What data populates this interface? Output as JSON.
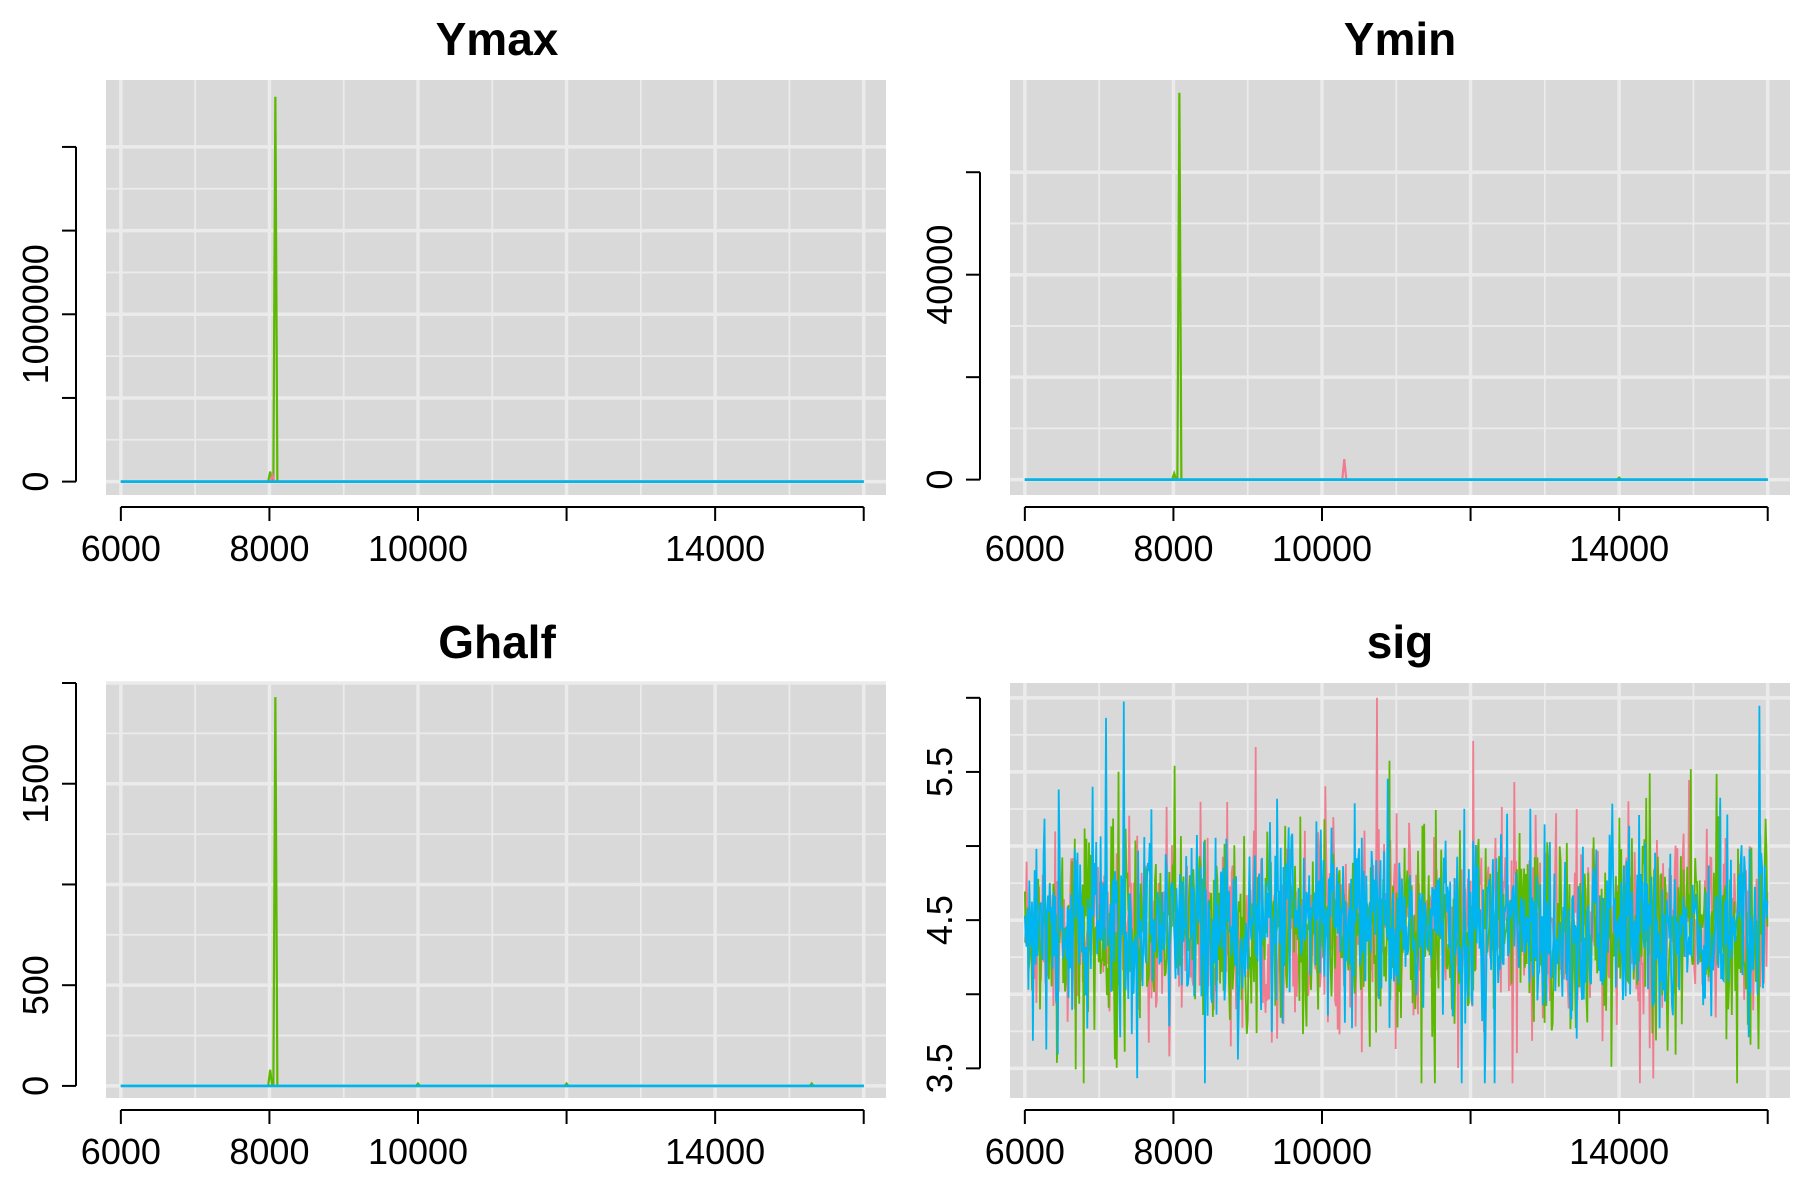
{
  "colors": {
    "panel_background": "#d9d9d9",
    "grid": "#ebebeb",
    "series_red": "#f07c8f",
    "series_green": "#5cb800",
    "series_blue": "#00b4f0"
  },
  "chart_data": [
    {
      "type": "line",
      "title": "Ymax",
      "xlabel": "",
      "ylabel": "",
      "xlim": [
        5800,
        16300
      ],
      "ylim": [
        -80000,
        2400000
      ],
      "x_ticks": [
        6000,
        8000,
        10000,
        12000,
        14000,
        16000
      ],
      "x_tick_labels": [
        "6000",
        "8000",
        "10000",
        "",
        "14000",
        ""
      ],
      "y_ticks": [
        0,
        500000,
        1000000,
        1500000,
        2000000
      ],
      "y_tick_labels": [
        "0",
        "",
        "1000000",
        "",
        ""
      ],
      "grid": true,
      "legend": "none",
      "baseline": 0,
      "spikes": [
        {
          "series": "green",
          "x": 8080,
          "y": 2300000
        },
        {
          "series": "green",
          "x": 8010,
          "y": 60000
        },
        {
          "series": "red",
          "x": 8040,
          "y": 40000
        }
      ],
      "series": [
        {
          "color_key": "series_red"
        },
        {
          "color_key": "series_green"
        },
        {
          "color_key": "series_blue"
        }
      ]
    },
    {
      "type": "line",
      "title": "Ymin",
      "xlabel": "",
      "ylabel": "",
      "xlim": [
        5800,
        16300
      ],
      "ylim": [
        -3000,
        78000
      ],
      "x_ticks": [
        6000,
        8000,
        10000,
        12000,
        14000,
        16000
      ],
      "x_tick_labels": [
        "6000",
        "8000",
        "10000",
        "",
        "14000",
        ""
      ],
      "y_ticks": [
        0,
        20000,
        40000,
        60000
      ],
      "y_tick_labels": [
        "0",
        "",
        "40000",
        ""
      ],
      "grid": true,
      "legend": "none",
      "baseline": 0,
      "spikes": [
        {
          "series": "green",
          "x": 8080,
          "y": 75500
        },
        {
          "series": "green",
          "x": 8010,
          "y": 1200
        },
        {
          "series": "red",
          "x": 10300,
          "y": 4000
        },
        {
          "series": "green",
          "x": 14000,
          "y": 400
        }
      ],
      "series": [
        {
          "color_key": "series_red"
        },
        {
          "color_key": "series_green"
        },
        {
          "color_key": "series_blue"
        }
      ]
    },
    {
      "type": "line",
      "title": "Ghalf",
      "xlabel": "",
      "ylabel": "",
      "xlim": [
        5800,
        16300
      ],
      "ylim": [
        -60,
        2000
      ],
      "x_ticks": [
        6000,
        8000,
        10000,
        12000,
        14000,
        16000
      ],
      "x_tick_labels": [
        "6000",
        "8000",
        "10000",
        "",
        "14000",
        ""
      ],
      "y_ticks": [
        0,
        500,
        1000,
        1500,
        2000
      ],
      "y_tick_labels": [
        "0",
        "500",
        "",
        "1500",
        ""
      ],
      "grid": true,
      "legend": "none",
      "baseline": 0,
      "spikes": [
        {
          "series": "green",
          "x": 8080,
          "y": 1930
        },
        {
          "series": "green",
          "x": 8010,
          "y": 80
        },
        {
          "series": "green",
          "x": 10000,
          "y": 12
        },
        {
          "series": "green",
          "x": 12000,
          "y": 12
        },
        {
          "series": "green",
          "x": 15300,
          "y": 12
        }
      ],
      "series": [
        {
          "color_key": "series_red"
        },
        {
          "color_key": "series_green"
        },
        {
          "color_key": "series_blue"
        }
      ]
    },
    {
      "type": "line",
      "title": "sig",
      "xlabel": "",
      "ylabel": "",
      "xlim": [
        5800,
        16300
      ],
      "ylim": [
        3.3,
        6.1
      ],
      "x_ticks": [
        6000,
        8000,
        10000,
        12000,
        14000,
        16000
      ],
      "x_tick_labels": [
        "6000",
        "8000",
        "10000",
        "",
        "14000",
        ""
      ],
      "y_ticks": [
        3.5,
        4.0,
        4.5,
        5.0,
        5.5,
        6.0
      ],
      "y_tick_labels": [
        "3.5",
        "",
        "4.5",
        "",
        "5.5",
        ""
      ],
      "grid": true,
      "legend": "none",
      "noise": {
        "x_start": 6000,
        "x_end": 16000,
        "mean": 4.45,
        "low": 3.4,
        "high": 6.0
      },
      "series": [
        {
          "color_key": "series_red"
        },
        {
          "color_key": "series_green"
        },
        {
          "color_key": "series_blue"
        }
      ]
    }
  ]
}
